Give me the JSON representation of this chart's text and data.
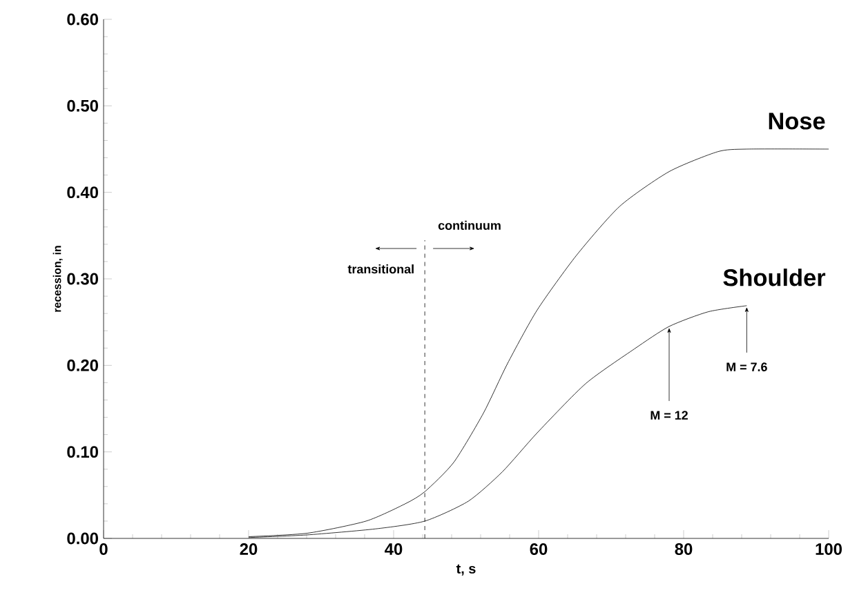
{
  "chart_data": {
    "type": "line",
    "xlabel": "t, s",
    "ylabel": "recession, in",
    "xlim": [
      0,
      100
    ],
    "xticks": [
      0,
      20,
      40,
      60,
      80,
      100
    ],
    "ylim": [
      0,
      0.6
    ],
    "yticks": [
      {
        "value": 0,
        "label": "0.00"
      },
      {
        "value": 0.1,
        "label": "0.10"
      },
      {
        "value": 0.2,
        "label": "0.20"
      },
      {
        "value": 0.3,
        "label": "0.30"
      },
      {
        "value": 0.4,
        "label": "0.40"
      },
      {
        "value": 0.5,
        "label": "0.50"
      },
      {
        "value": 0.6,
        "label": "0.60"
      }
    ],
    "grid": false,
    "legend": false,
    "marker": "none",
    "line_style": "solid",
    "series": [
      {
        "name": "Nose",
        "color": "#000000",
        "x": [
          20,
          28.1,
          36.2,
          41.6,
          44.3,
          48.3,
          52.4,
          55.7,
          59.8,
          65.2,
          71.2,
          78,
          84.7,
          88.7,
          100
        ],
        "values": [
          0.002,
          0.006,
          0.02,
          0.04,
          0.054,
          0.088,
          0.145,
          0.202,
          0.264,
          0.327,
          0.384,
          0.424,
          0.447,
          0.45,
          0.45
        ]
      },
      {
        "name": "Shoulder",
        "color": "#000000",
        "x": [
          20,
          28,
          37.5,
          44.3,
          50.3,
          55,
          59.8,
          66.5,
          73.2,
          78,
          83.4,
          88.7
        ],
        "values": [
          0.001,
          0.004,
          0.011,
          0.02,
          0.043,
          0.077,
          0.122,
          0.179,
          0.219,
          0.245,
          0.262,
          0.269
        ]
      }
    ],
    "ref_lines": [
      {
        "axis": "x",
        "value": 44.3,
        "line_style": "dashed"
      }
    ],
    "annotations": [
      "continuum",
      "transitional",
      {
        "text": "M = 12",
        "x": 78,
        "y": 0.245
      },
      {
        "text": "M = 7.6",
        "x": 88.7,
        "y": 0.269
      }
    ]
  }
}
